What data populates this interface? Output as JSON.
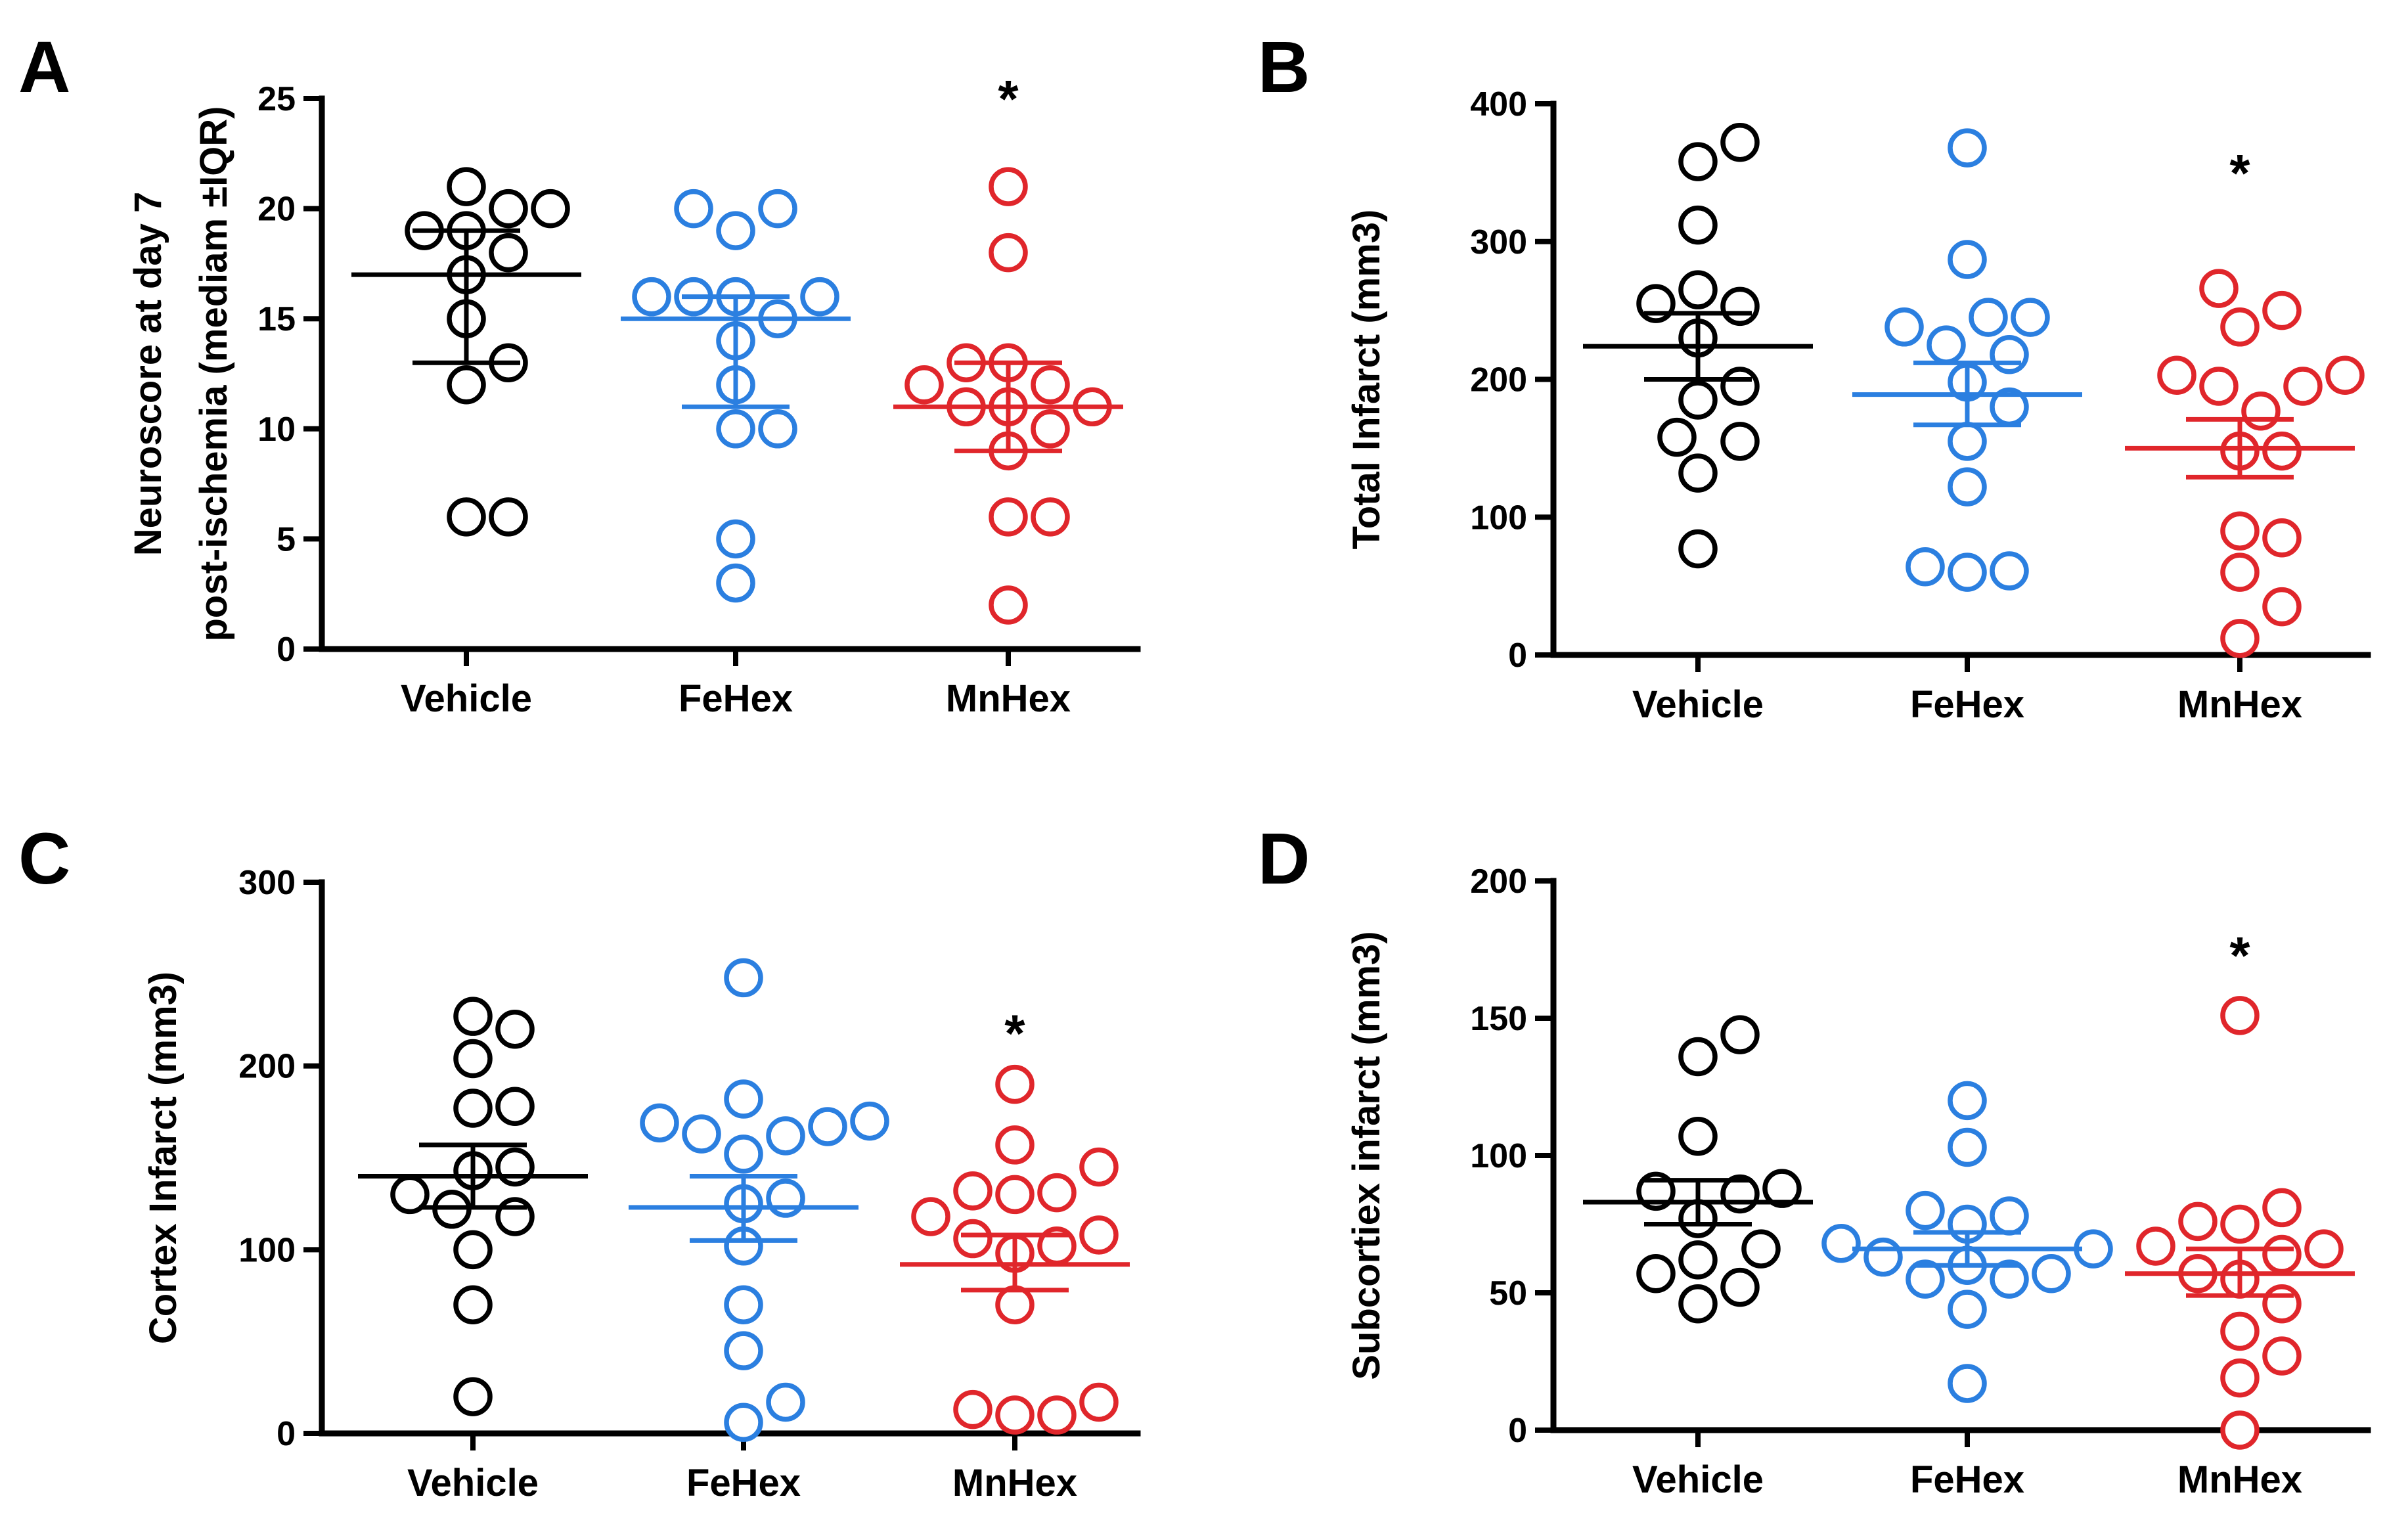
{
  "chart_data": [
    {
      "panel": "A",
      "type": "scatter",
      "ylabel_lines": [
        "Neuroscore at day 7",
        "post-ischemia (mediam ±IQR)"
      ],
      "ylim": [
        0,
        25
      ],
      "yticks": [
        0,
        5,
        10,
        15,
        20,
        25
      ],
      "categories": [
        "Vehicle",
        "FeHex",
        "MnHex"
      ],
      "series": [
        {
          "name": "Vehicle",
          "color": "#000000",
          "values": [
            21,
            20,
            20,
            19,
            19,
            18,
            17,
            15,
            13,
            12,
            6,
            6
          ],
          "center": 17,
          "upper": 19,
          "lower": 13
        },
        {
          "name": "FeHex",
          "color": "#2b7fe0",
          "values": [
            20,
            20,
            19,
            16,
            16,
            16,
            16,
            15,
            14,
            12,
            10,
            10,
            5,
            3
          ],
          "center": 15,
          "upper": 16,
          "lower": 11
        },
        {
          "name": "MnHex",
          "color": "#e0262b",
          "values": [
            21,
            18,
            13,
            13,
            12,
            12,
            11,
            11,
            11,
            10,
            9,
            6,
            6,
            2
          ],
          "center": 11,
          "upper": 13,
          "lower": 9
        }
      ],
      "significance": {
        "group": "MnHex",
        "label": "*",
        "y": 25
      }
    },
    {
      "panel": "B",
      "type": "scatter",
      "ylabel_lines": [
        "Total Infarct (mm3)"
      ],
      "ylim": [
        0,
        400
      ],
      "yticks": [
        0,
        100,
        200,
        300,
        400
      ],
      "categories": [
        "Vehicle",
        "FeHex",
        "MnHex"
      ],
      "series": [
        {
          "name": "Vehicle",
          "color": "#000000",
          "values": [
            372,
            358,
            312,
            265,
            255,
            253,
            230,
            195,
            185,
            158,
            155,
            132,
            77
          ],
          "center": 224,
          "upper": 248,
          "lower": 200
        },
        {
          "name": "FeHex",
          "color": "#2b7fe0",
          "values": [
            368,
            287,
            245,
            245,
            238,
            225,
            218,
            198,
            180,
            155,
            122,
            64,
            61,
            60
          ],
          "center": 189,
          "upper": 212,
          "lower": 167
        },
        {
          "name": "MnHex",
          "color": "#e0262b",
          "values": [
            266,
            250,
            238,
            203,
            203,
            195,
            195,
            177,
            148,
            148,
            90,
            85,
            60,
            35,
            12
          ],
          "center": 150,
          "upper": 171,
          "lower": 129
        }
      ],
      "significance": {
        "group": "MnHex",
        "label": "*",
        "y": 350
      }
    },
    {
      "panel": "C",
      "type": "scatter",
      "ylabel_lines": [
        "Cortex Infarct (mm3)"
      ],
      "ylim": [
        0,
        300
      ],
      "yticks": [
        0,
        100,
        200,
        300
      ],
      "categories": [
        "Vehicle",
        "FeHex",
        "MnHex"
      ],
      "series": [
        {
          "name": "Vehicle",
          "color": "#000000",
          "values": [
            227,
            220,
            204,
            178,
            177,
            145,
            143,
            130,
            122,
            118,
            100,
            70,
            20
          ],
          "center": 140,
          "upper": 157,
          "lower": 123
        },
        {
          "name": "FeHex",
          "color": "#2b7fe0",
          "values": [
            248,
            182,
            170,
            169,
            167,
            163,
            162,
            152,
            128,
            125,
            102,
            70,
            45,
            17,
            6
          ],
          "center": 123,
          "upper": 140,
          "lower": 105
        },
        {
          "name": "MnHex",
          "color": "#e0262b",
          "values": [
            190,
            157,
            145,
            132,
            131,
            130,
            118,
            108,
            106,
            102,
            98,
            70,
            17,
            13,
            10,
            10
          ],
          "center": 92,
          "upper": 108,
          "lower": 78
        },
        {
          "name": "_",
          "color": "#e0262b",
          "values": []
        }
      ],
      "significance": {
        "group": "MnHex",
        "label": "*",
        "y": 218
      }
    },
    {
      "panel": "D",
      "type": "scatter",
      "ylabel_lines": [
        "Subcortiex infarct (mm3)"
      ],
      "ylim": [
        0,
        200
      ],
      "yticks": [
        0,
        50,
        100,
        150,
        200
      ],
      "categories": [
        "Vehicle",
        "FeHex",
        "MnHex"
      ],
      "series": [
        {
          "name": "Vehicle",
          "color": "#000000",
          "values": [
            144,
            136,
            107,
            88,
            87,
            86,
            77,
            66,
            62,
            57,
            52,
            46
          ],
          "center": 83,
          "upper": 91,
          "lower": 75
        },
        {
          "name": "FeHex",
          "color": "#2b7fe0",
          "values": [
            120,
            103,
            80,
            78,
            75,
            68,
            66,
            63,
            60,
            57,
            55,
            55,
            44,
            17
          ],
          "center": 66,
          "upper": 72,
          "lower": 60
        },
        {
          "name": "MnHex",
          "color": "#e0262b",
          "values": [
            151,
            81,
            76,
            75,
            67,
            66,
            64,
            57,
            55,
            46,
            36,
            27,
            19,
            0
          ],
          "center": 57,
          "upper": 66,
          "lower": 49
        }
      ],
      "significance": {
        "group": "MnHex",
        "label": "*",
        "y": 173
      }
    }
  ]
}
